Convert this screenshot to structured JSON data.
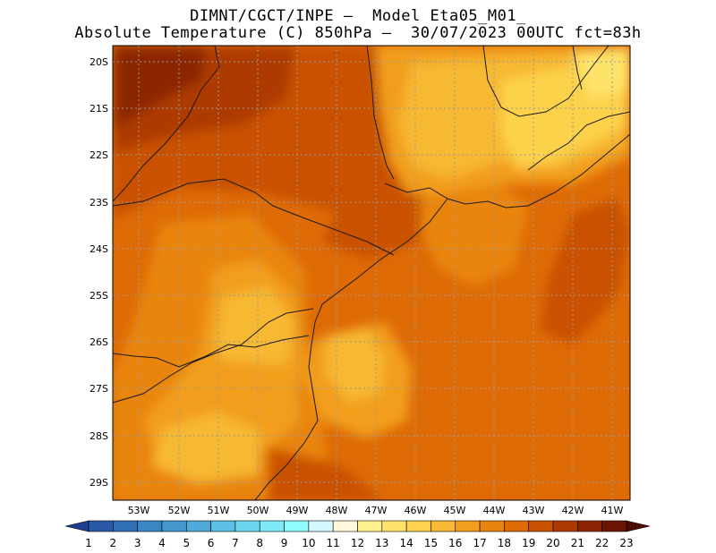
{
  "header": {
    "line1": "DIMNT/CGCT/INPE –  Model Eta05_M01_",
    "line2": "Absolute Temperature (C) 850hPa –  30/07/2023 00UTC fct=83h"
  },
  "axes": {
    "lon_labels": [
      "53W",
      "52W",
      "51W",
      "50W",
      "49W",
      "48W",
      "47W",
      "46W",
      "45W",
      "44W",
      "43W",
      "42W",
      "41W"
    ],
    "lat_labels": [
      "20S",
      "21S",
      "22S",
      "23S",
      "24S",
      "25S",
      "26S",
      "27S",
      "28S",
      "29S"
    ]
  },
  "colorbar": {
    "labels": [
      "1",
      "2",
      "3",
      "4",
      "5",
      "6",
      "7",
      "8",
      "9",
      "10",
      "11",
      "12",
      "13",
      "14",
      "15",
      "16",
      "17",
      "18",
      "19",
      "20",
      "21",
      "22",
      "23"
    ],
    "colors": [
      "#1f3f93",
      "#2a5aa6",
      "#3170b3",
      "#3a86c2",
      "#4498ce",
      "#4fabd9",
      "#5cc0e4",
      "#6cd6ee",
      "#7fe9f7",
      "#8ffbff",
      "#d6f8ff",
      "#fff6dc",
      "#fff08f",
      "#fee36b",
      "#fdd24c",
      "#f7b833",
      "#f29e1c",
      "#e9850f",
      "#de6b06",
      "#c95103",
      "#ad3a03",
      "#8c2503",
      "#6b1402",
      "#4d0a02"
    ]
  }
}
